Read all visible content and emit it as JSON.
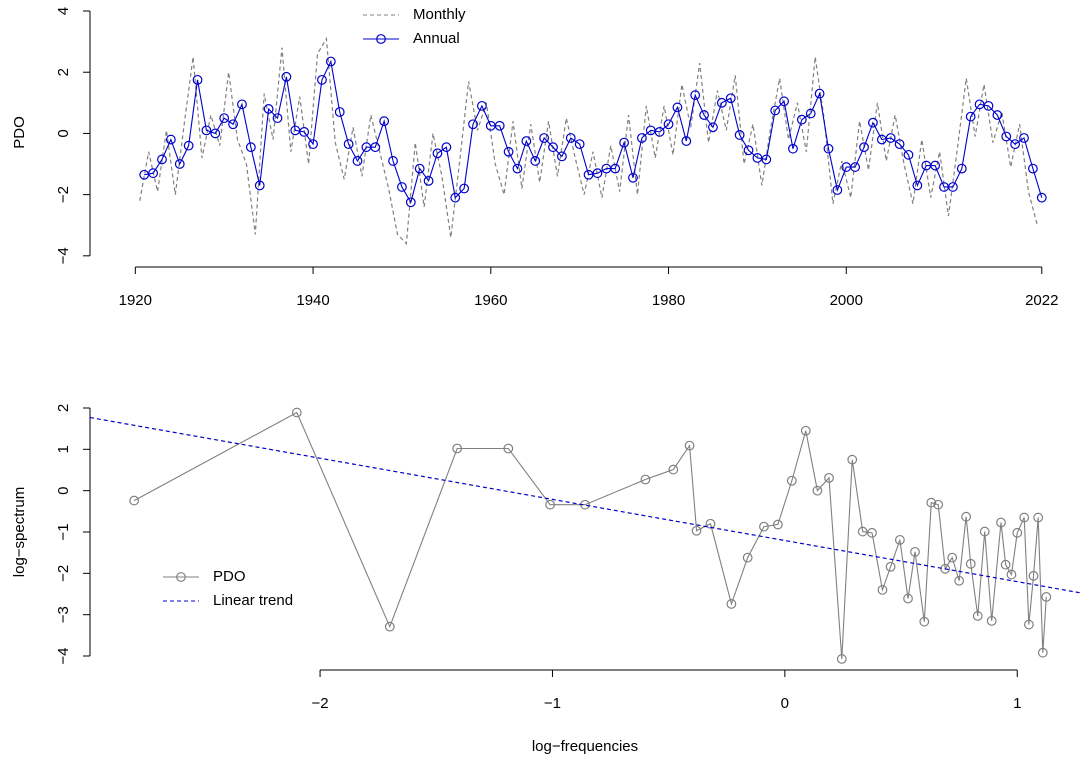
{
  "chart_data": [
    {
      "type": "line",
      "ylabel": "PDO",
      "legend": "top",
      "grid": false,
      "xlim": [
        1914.9,
        2026.3
      ],
      "ylim": [
        -4.3,
        4.36
      ],
      "xticks": [
        1920,
        1940,
        1960,
        1980,
        2000,
        2022
      ],
      "yticks": [
        {
          "value": -4,
          "label": "−4"
        },
        {
          "value": -2,
          "label": "−2"
        },
        0,
        2,
        4
      ],
      "series": [
        {
          "name": "Monthly",
          "color": "#808080",
          "dashed": true,
          "markers": false,
          "x": [
            1920.5,
            1921.5,
            1922.5,
            1923.5,
            1924.5,
            1925.5,
            1926.5,
            1927.5,
            1928.5,
            1929.5,
            1930.5,
            1931.5,
            1932.5,
            1933.5,
            1934.5,
            1935.5,
            1936.5,
            1937.5,
            1938.5,
            1939.5,
            1940.5,
            1941.5,
            1942.5,
            1943.5,
            1944.5,
            1945.5,
            1946.5,
            1947.5,
            1948.5,
            1949.5,
            1950.5,
            1951.5,
            1952.5,
            1953.5,
            1954.5,
            1955.5,
            1956.5,
            1957.5,
            1958.5,
            1959.5,
            1960.5,
            1961.5,
            1962.5,
            1963.5,
            1964.5,
            1965.5,
            1966.5,
            1967.5,
            1968.5,
            1969.5,
            1970.5,
            1971.5,
            1972.5,
            1973.5,
            1974.5,
            1975.5,
            1976.5,
            1977.5,
            1978.5,
            1979.5,
            1980.5,
            1981.5,
            1982.5,
            1983.5,
            1984.5,
            1985.5,
            1986.5,
            1987.5,
            1988.5,
            1989.5,
            1990.5,
            1991.5,
            1992.5,
            1993.5,
            1994.5,
            1995.5,
            1996.5,
            1997.5,
            1998.5,
            1999.5,
            2000.5,
            2001.5,
            2002.5,
            2003.5,
            2004.5,
            2005.5,
            2006.5,
            2007.5,
            2008.5,
            2009.5,
            2010.5,
            2011.5,
            2012.5,
            2013.5,
            2014.5,
            2015.5,
            2016.5,
            2017.5,
            2018.5,
            2019.5,
            2020.5,
            2021.5
          ],
          "values": [
            -2.2,
            -0.6,
            -1.9,
            0.1,
            -2.0,
            0.3,
            2.5,
            -0.8,
            0.6,
            -0.4,
            2.0,
            -0.2,
            -1.0,
            -3.3,
            1.3,
            -0.2,
            2.8,
            -0.6,
            1.2,
            -1.0,
            2.6,
            3.1,
            -0.3,
            -1.5,
            0.2,
            -1.4,
            0.6,
            -0.6,
            -1.8,
            -3.3,
            -3.6,
            -0.3,
            -2.4,
            0.0,
            -1.4,
            -3.4,
            -0.9,
            1.7,
            0.1,
            1.0,
            -1.0,
            -2.0,
            0.4,
            -1.8,
            0.3,
            -1.6,
            0.4,
            -1.4,
            0.5,
            -0.8,
            -2.0,
            -0.6,
            -2.1,
            -0.4,
            -1.9,
            0.6,
            -2.0,
            0.9,
            -0.8,
            0.9,
            -0.7,
            1.6,
            0.2,
            2.3,
            -0.3,
            1.4,
            0.1,
            1.9,
            -1.0,
            0.3,
            -1.7,
            0.2,
            1.8,
            -0.2,
            1.0,
            -0.6,
            2.5,
            0.5,
            -2.3,
            -0.9,
            -2.1,
            0.4,
            -1.2,
            1.0,
            -0.9,
            0.6,
            -1.0,
            -2.3,
            -0.2,
            -2.1,
            -0.6,
            -2.7,
            -0.5,
            1.8,
            -0.1,
            1.6,
            -0.3,
            0.7,
            -1.1,
            0.3,
            -1.9,
            -3.0
          ]
        },
        {
          "name": "Annual",
          "color": "#0000cc",
          "dashed": false,
          "markers": true,
          "x": [
            1921,
            1922,
            1923,
            1924,
            1925,
            1926,
            1927,
            1928,
            1929,
            1930,
            1931,
            1932,
            1933,
            1934,
            1935,
            1936,
            1937,
            1938,
            1939,
            1940,
            1941,
            1942,
            1943,
            1944,
            1945,
            1946,
            1947,
            1948,
            1949,
            1950,
            1951,
            1952,
            1953,
            1954,
            1955,
            1956,
            1957,
            1958,
            1959,
            1960,
            1961,
            1962,
            1963,
            1964,
            1965,
            1966,
            1967,
            1968,
            1969,
            1970,
            1971,
            1972,
            1973,
            1974,
            1975,
            1976,
            1977,
            1978,
            1979,
            1980,
            1981,
            1982,
            1983,
            1984,
            1985,
            1986,
            1987,
            1988,
            1989,
            1990,
            1991,
            1992,
            1993,
            1994,
            1995,
            1996,
            1997,
            1998,
            1999,
            2000,
            2001,
            2002,
            2003,
            2004,
            2005,
            2006,
            2007,
            2008,
            2009,
            2010,
            2011,
            2012,
            2013,
            2014,
            2015,
            2016,
            2017,
            2018,
            2019,
            2020,
            2021,
            2022
          ],
          "values": [
            -1.35,
            -1.3,
            -0.85,
            -0.2,
            -1.0,
            -0.4,
            1.75,
            0.1,
            0.0,
            0.5,
            0.3,
            0.95,
            -0.45,
            -1.7,
            0.8,
            0.5,
            1.85,
            0.1,
            0.05,
            -0.35,
            1.75,
            2.35,
            0.7,
            -0.35,
            -0.9,
            -0.45,
            -0.45,
            0.4,
            -0.9,
            -1.75,
            -2.25,
            -1.15,
            -1.55,
            -0.65,
            -0.45,
            -2.1,
            -1.8,
            0.3,
            0.9,
            0.25,
            0.25,
            -0.6,
            -1.15,
            -0.25,
            -0.9,
            -0.15,
            -0.45,
            -0.75,
            -0.15,
            -0.35,
            -1.35,
            -1.3,
            -1.15,
            -1.15,
            -0.3,
            -1.45,
            -0.15,
            0.1,
            0.05,
            0.3,
            0.85,
            -0.25,
            1.25,
            0.6,
            0.2,
            1.0,
            1.15,
            -0.05,
            -0.55,
            -0.8,
            -0.85,
            0.75,
            1.05,
            -0.5,
            0.45,
            0.65,
            1.3,
            -0.5,
            -1.85,
            -1.1,
            -1.1,
            -0.45,
            0.35,
            -0.2,
            -0.15,
            -0.35,
            -0.7,
            -1.7,
            -1.05,
            -1.05,
            -1.75,
            -1.75,
            -1.15,
            0.55,
            0.95,
            0.9,
            0.6,
            -0.1,
            -0.35,
            -0.15,
            -1.15,
            -2.1
          ]
        }
      ]
    },
    {
      "type": "line",
      "xlabel": "log−frequencies",
      "ylabel": "log−spectrum",
      "legend": "left",
      "grid": false,
      "xlim": [
        -2.99,
        1.27
      ],
      "ylim": [
        -4.29,
        2.29
      ],
      "xticks": [
        {
          "value": -2,
          "label": "−2"
        },
        {
          "value": -1,
          "label": "−1"
        },
        0,
        1
      ],
      "yticks": [
        {
          "value": -4,
          "label": "−4"
        },
        {
          "value": -3,
          "label": "−3"
        },
        {
          "value": -2,
          "label": "−2"
        },
        {
          "value": -1,
          "label": "−1"
        },
        0,
        1,
        2
      ],
      "series": [
        {
          "name": "PDO",
          "color": "#808080",
          "dashed": false,
          "markers": true,
          "x": [
            -2.8,
            -2.1,
            -1.7,
            -1.41,
            -1.19,
            -1.01,
            -0.86,
            -0.6,
            -0.48,
            -0.41,
            -0.38,
            -0.32,
            -0.23,
            -0.16,
            -0.09,
            -0.03,
            0.03,
            0.09,
            0.14,
            0.19,
            0.245,
            0.29,
            0.335,
            0.375,
            0.42,
            0.455,
            0.495,
            0.53,
            0.56,
            0.6,
            0.63,
            0.66,
            0.69,
            0.72,
            0.75,
            0.78,
            0.8,
            0.83,
            0.86,
            0.89,
            0.93,
            0.95,
            0.975,
            1.0,
            1.03,
            1.05,
            1.07,
            1.09,
            1.11,
            1.125
          ],
          "values": [
            -0.24,
            1.89,
            -3.29,
            1.02,
            1.02,
            -0.34,
            -0.34,
            0.27,
            0.51,
            1.09,
            -0.97,
            -0.8,
            -2.74,
            -1.62,
            -0.87,
            -0.82,
            0.24,
            1.45,
            0.0,
            0.31,
            -4.07,
            0.75,
            -0.99,
            -1.02,
            -2.4,
            -1.84,
            -1.19,
            -2.61,
            -1.48,
            -3.17,
            -0.29,
            -0.34,
            -1.89,
            -1.62,
            -2.18,
            -0.63,
            -1.77,
            -3.03,
            -0.99,
            -3.15,
            -0.77,
            -1.79,
            -2.03,
            -1.02,
            -0.65,
            -3.24,
            -2.06,
            -0.65,
            -3.92,
            -2.57
          ]
        },
        {
          "name": "Linear trend",
          "color": "#0000cc",
          "dashed": true,
          "markers": false,
          "x": [
            -2.99,
            1.27
          ],
          "values": [
            1.77,
            -2.47
          ]
        }
      ]
    }
  ]
}
